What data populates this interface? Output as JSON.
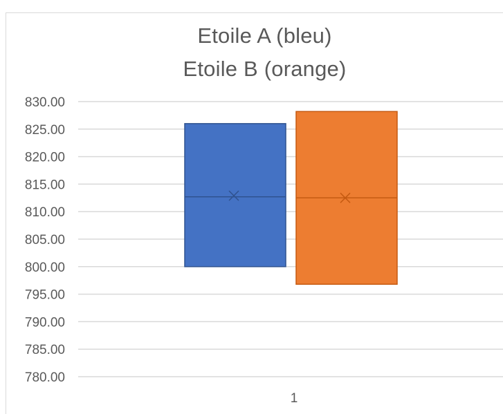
{
  "chart_data": {
    "type": "box",
    "title_lines": [
      "Etoile A (bleu)",
      "Etoile B (orange)"
    ],
    "xlabel": "",
    "ylabel": "",
    "categories": [
      "1"
    ],
    "y_ticks": [
      "830.00",
      "825.00",
      "820.00",
      "815.00",
      "810.00",
      "805.00",
      "800.00",
      "795.00",
      "790.00",
      "785.00",
      "780.00"
    ],
    "ylim": [
      780,
      830
    ],
    "grid": true,
    "legend": "none",
    "series": [
      {
        "color": "#4472c4",
        "q1": 800.0,
        "median": 812.7,
        "mean": 812.9,
        "q3": 826.0
      },
      {
        "color": "#ed7d31",
        "q1": 796.8,
        "median": 812.5,
        "mean": 812.5,
        "q3": 828.2
      }
    ]
  }
}
